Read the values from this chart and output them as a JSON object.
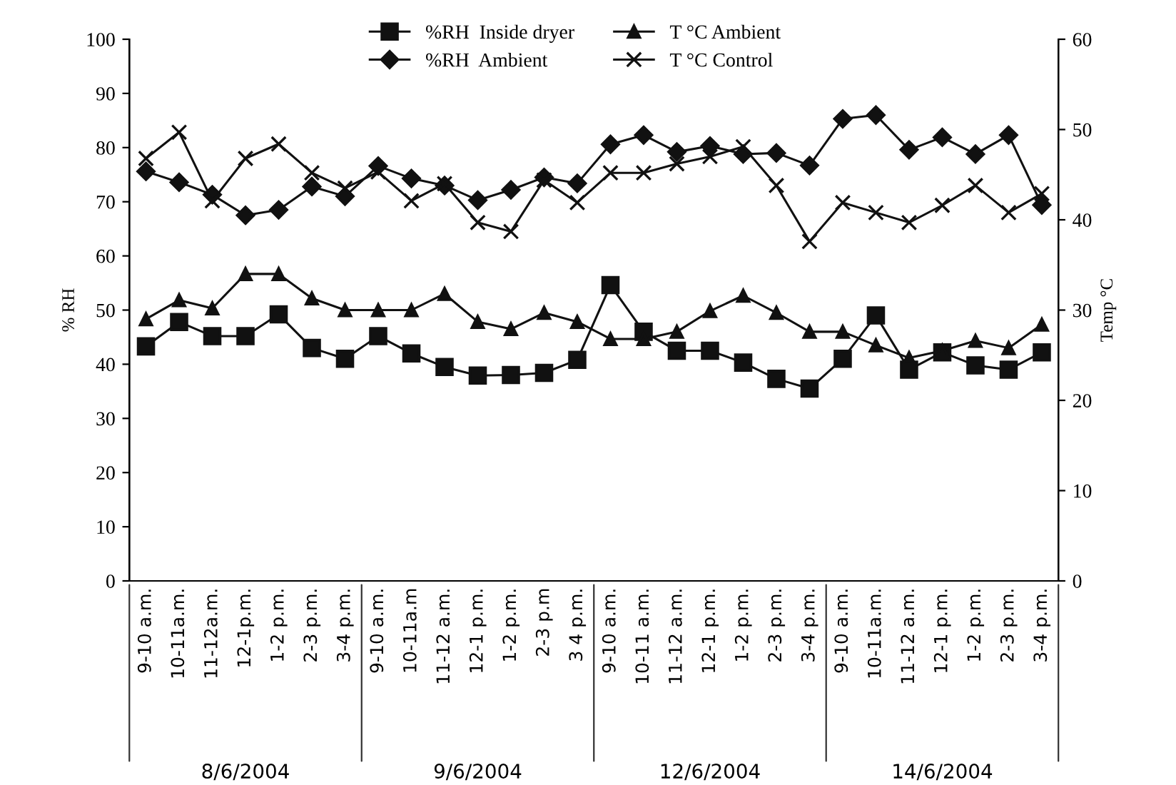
{
  "chart_data": {
    "type": "line",
    "ylabel": "% RH",
    "y2label": "Temp °C",
    "categories": [
      "9-10 a.m.",
      "10-11a.m.",
      "11-12a.m.",
      "12-1p.m.",
      "1-2 p.m.",
      "2-3 p.m.",
      "3-4 p.m.",
      "9-10 a.m.",
      "10-11a.m",
      "11-12 a.m.",
      "12-1 p.m.",
      "1-2 p.m.",
      "2-3 p.m",
      "3 4 p.m.",
      "9-10 a.m.",
      "10-11 a.m.",
      "11-12 a.m.",
      "12-1 p.m.",
      "1-2 p.m.",
      "2-3 p.m.",
      "3-4 p.m.",
      "9-10 a.m.",
      "10-11a.m.",
      "11-12 a.m.",
      "12-1 p.m.",
      "1-2 p.m.",
      "2-3 p.m.",
      "3-4 p.m."
    ],
    "series": [
      {
        "name": "%RH  Inside dryer",
        "color": "#111111",
        "marker": "square",
        "values": [
          43.3,
          47.8,
          45.2,
          45.2,
          49.2,
          43,
          41,
          45.2,
          42,
          39.5,
          37.9,
          38,
          38.4,
          40.8,
          54.6,
          46,
          42.5,
          42.5,
          40.3,
          37.3,
          35.5,
          41,
          49,
          39,
          42.2,
          39.8,
          39,
          42.2
        ]
      },
      {
        "name": "%RH  Ambient",
        "color": "#111111",
        "marker": "diamond",
        "values": [
          75.6,
          73.6,
          71.3,
          67.5,
          68.5,
          72.8,
          71,
          76.6,
          74.3,
          73,
          70.3,
          72.2,
          74.5,
          73.4,
          80.6,
          82.3,
          79.2,
          80.3,
          78.8,
          79,
          76.7,
          85.3,
          86,
          79.6,
          81.9,
          78.8,
          82.3,
          69.4
        ]
      },
      {
        "name": "T °C Ambient",
        "color": "#111111",
        "marker": "triangle",
        "axis": "y2",
        "values": [
          29,
          31.1,
          30.2,
          34,
          34,
          31.3,
          30,
          30,
          30,
          31.8,
          28.7,
          27.9,
          29.7,
          28.7,
          26.8,
          26.8,
          27.6,
          29.9,
          31.6,
          29.7,
          27.6,
          27.6,
          26.1,
          24.7,
          25.5,
          26.6,
          25.8,
          28.4
        ]
      },
      {
        "name": "T °C Control",
        "color": "#111111",
        "marker": "cross",
        "axis": "y2",
        "values": [
          46.8,
          49.7,
          42.1,
          46.8,
          48.4,
          45.2,
          43.5,
          45.3,
          42.1,
          44,
          39.7,
          38.7,
          44.4,
          41.9,
          45.2,
          45.2,
          46.2,
          47,
          48.1,
          43.8,
          37.6,
          41.9,
          40.8,
          39.7,
          41.6,
          43.8,
          40.8,
          42.9
        ]
      }
    ],
    "ylim": [
      0,
      100
    ],
    "yticks": [
      0,
      10,
      20,
      30,
      40,
      50,
      60,
      70,
      80,
      90,
      100
    ],
    "y2lim": [
      0,
      60
    ],
    "y2ticks": [
      0,
      10,
      20,
      30,
      40,
      50,
      60
    ],
    "annotations": [
      "8/6/2004",
      "9/6/2004",
      "12/6/2004",
      "14/6/2004"
    ],
    "legend": "top",
    "line_style": "solid"
  }
}
